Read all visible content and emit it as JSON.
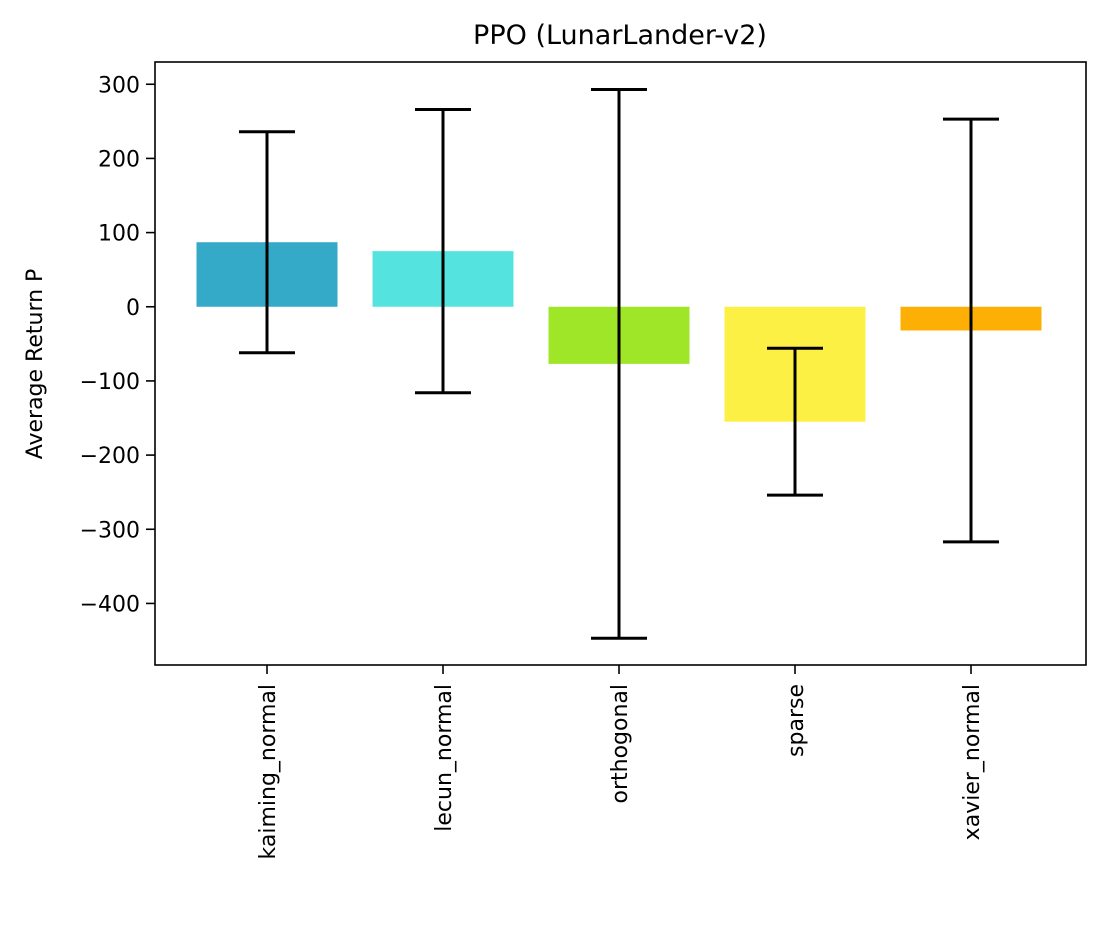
{
  "chart_data": {
    "type": "bar",
    "title": "PPO (LunarLander-v2)",
    "xlabel": "",
    "ylabel": "Average Return P",
    "categories": [
      "kaiming_normal",
      "lecun_normal",
      "orthogonal",
      "sparse",
      "xavier_normal"
    ],
    "values": [
      87,
      75,
      -77,
      -155,
      -32
    ],
    "errors": [
      149,
      191,
      370,
      99,
      285
    ],
    "colors": [
      "#34a9c8",
      "#55e3e0",
      "#a0e628",
      "#fdf044",
      "#fdaf05"
    ],
    "error_color": "#000000",
    "ylim": [
      -483,
      330
    ],
    "yticks": [
      300,
      200,
      100,
      0,
      -100,
      -200,
      -300,
      -400
    ],
    "ytick_labels": [
      "300",
      "200",
      "100",
      "0",
      "−100",
      "−200",
      "−300",
      "−400"
    ],
    "grid": false,
    "legend": "none"
  }
}
